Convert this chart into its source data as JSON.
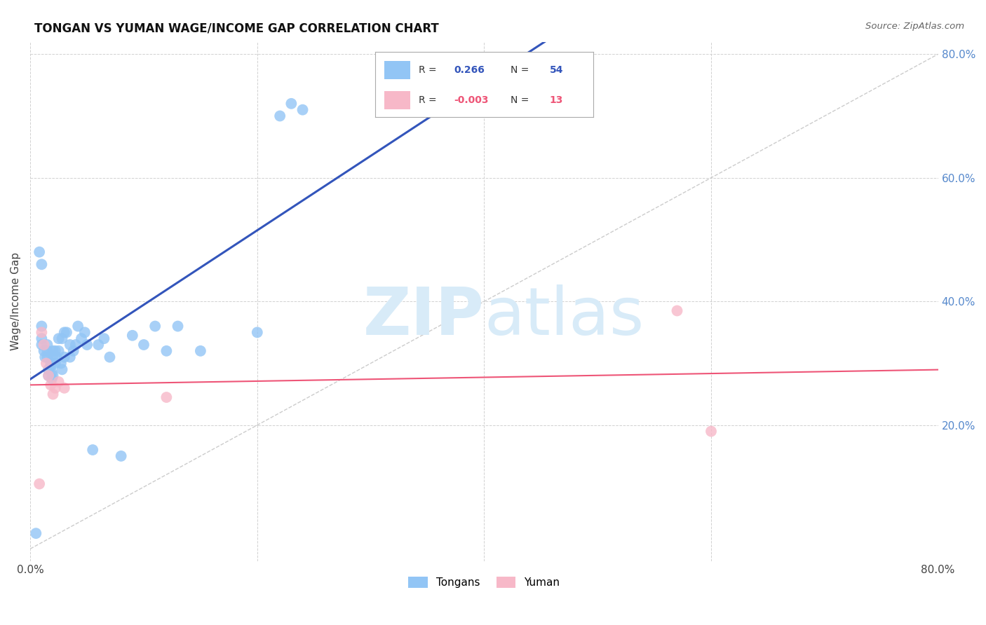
{
  "title": "TONGAN VS YUMAN WAGE/INCOME GAP CORRELATION CHART",
  "source": "Source: ZipAtlas.com",
  "ylabel": "Wage/Income Gap",
  "xlim": [
    0.0,
    0.8
  ],
  "ylim": [
    -0.02,
    0.82
  ],
  "yticks": [
    0.2,
    0.4,
    0.6,
    0.8
  ],
  "ytick_labels": [
    "20.0%",
    "40.0%",
    "60.0%",
    "80.0%"
  ],
  "xticks": [
    0.0,
    0.2,
    0.4,
    0.6,
    0.8
  ],
  "tongan_color": "#92C5F5",
  "yuman_color": "#F7B8C8",
  "regression_tongan_color": "#3355BB",
  "regression_yuman_color": "#EE5577",
  "diagonal_color": "#CCCCCC",
  "watermark_color": "#D8EBF8",
  "background_color": "#FFFFFF",
  "grid_color": "#CCCCCC",
  "right_axis_color": "#5588CC",
  "tongan_x": [
    0.005,
    0.008,
    0.01,
    0.01,
    0.01,
    0.01,
    0.012,
    0.013,
    0.015,
    0.015,
    0.015,
    0.016,
    0.016,
    0.018,
    0.018,
    0.019,
    0.019,
    0.02,
    0.02,
    0.02,
    0.022,
    0.022,
    0.023,
    0.025,
    0.025,
    0.027,
    0.028,
    0.028,
    0.03,
    0.03,
    0.032,
    0.035,
    0.035,
    0.038,
    0.04,
    0.042,
    0.045,
    0.048,
    0.05,
    0.055,
    0.06,
    0.065,
    0.07,
    0.08,
    0.09,
    0.1,
    0.11,
    0.12,
    0.13,
    0.15,
    0.2,
    0.22,
    0.23,
    0.24
  ],
  "tongan_y": [
    0.025,
    0.48,
    0.46,
    0.36,
    0.34,
    0.33,
    0.32,
    0.31,
    0.33,
    0.32,
    0.31,
    0.29,
    0.28,
    0.3,
    0.295,
    0.285,
    0.275,
    0.32,
    0.31,
    0.28,
    0.32,
    0.3,
    0.31,
    0.34,
    0.32,
    0.3,
    0.34,
    0.29,
    0.35,
    0.31,
    0.35,
    0.33,
    0.31,
    0.32,
    0.33,
    0.36,
    0.34,
    0.35,
    0.33,
    0.16,
    0.33,
    0.34,
    0.31,
    0.15,
    0.345,
    0.33,
    0.36,
    0.32,
    0.36,
    0.32,
    0.35,
    0.7,
    0.72,
    0.71
  ],
  "yuman_x": [
    0.008,
    0.01,
    0.012,
    0.014,
    0.016,
    0.018,
    0.02,
    0.022,
    0.025,
    0.03,
    0.12,
    0.57,
    0.6
  ],
  "yuman_y": [
    0.105,
    0.35,
    0.33,
    0.3,
    0.28,
    0.265,
    0.25,
    0.26,
    0.27,
    0.26,
    0.245,
    0.385,
    0.19
  ]
}
